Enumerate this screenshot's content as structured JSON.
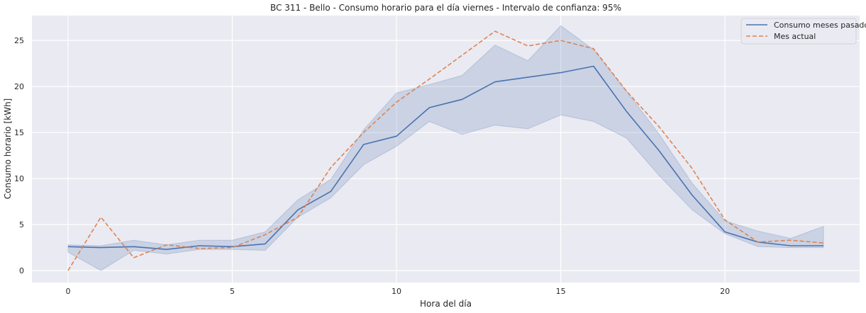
{
  "chart_data": {
    "type": "line",
    "title": "BC 311 - Bello - Consumo horario para el día viernes - Intervalo de confianza: 95%",
    "xlabel": "Hora del día",
    "ylabel": "Consumo horario [kWh]",
    "xlim": [
      -1.1,
      24.1
    ],
    "ylim": [
      -1.3,
      27.7
    ],
    "xticks": [
      0,
      5,
      10,
      15,
      20
    ],
    "yticks": [
      0,
      5,
      10,
      15,
      20,
      25
    ],
    "grid": true,
    "legend_position": "top-right",
    "x": [
      0,
      1,
      2,
      3,
      4,
      5,
      6,
      7,
      8,
      9,
      10,
      11,
      12,
      13,
      14,
      15,
      16,
      17,
      18,
      19,
      20,
      21,
      22,
      23
    ],
    "series": [
      {
        "name": "Consumo meses pasados",
        "style": "solid",
        "color": "#4c72b0",
        "values": [
          2.6,
          2.5,
          2.6,
          2.3,
          2.7,
          2.6,
          2.9,
          6.6,
          8.6,
          13.7,
          14.6,
          17.7,
          18.6,
          20.5,
          21.0,
          21.5,
          22.2,
          17.3,
          13.0,
          8.2,
          4.2,
          3.1,
          2.7,
          2.7
        ],
        "ci_lower": [
          2.0,
          0.0,
          2.2,
          1.8,
          2.3,
          2.3,
          2.2,
          5.8,
          7.9,
          11.5,
          13.5,
          16.2,
          14.8,
          15.8,
          15.4,
          16.9,
          16.2,
          14.4,
          10.3,
          6.6,
          4.0,
          2.6,
          2.5,
          2.5
        ],
        "ci_upper": [
          2.8,
          2.7,
          3.3,
          2.8,
          3.3,
          3.3,
          4.2,
          7.7,
          9.9,
          15.3,
          19.3,
          20.2,
          21.2,
          24.5,
          22.8,
          26.6,
          24.0,
          19.5,
          14.8,
          9.5,
          5.4,
          4.3,
          3.5,
          4.8
        ]
      },
      {
        "name": "Mes actual",
        "style": "dashed",
        "color": "#dd8452",
        "values": [
          0.0,
          5.8,
          1.4,
          2.8,
          2.4,
          2.5,
          3.9,
          5.8,
          11.2,
          15.0,
          18.3,
          20.8,
          23.4,
          26.0,
          24.4,
          25.0,
          24.1,
          19.5,
          15.6,
          11.1,
          5.5,
          3.1,
          3.3,
          3.0
        ]
      }
    ]
  }
}
